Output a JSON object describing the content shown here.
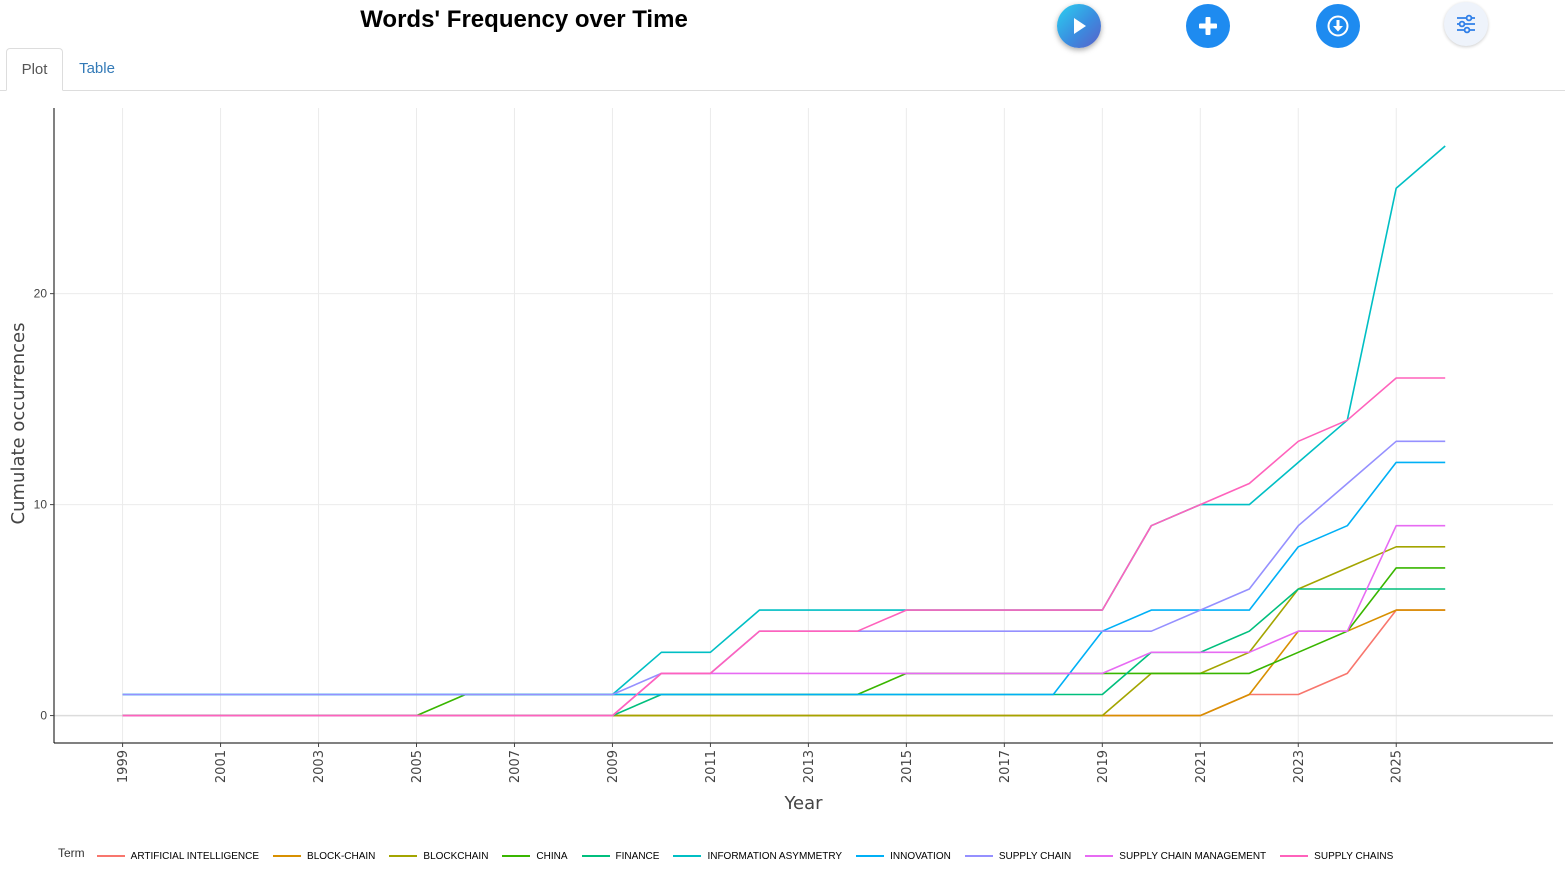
{
  "page": {
    "title": "Words' Frequency over Time",
    "tabs": [
      {
        "label": "Plot",
        "active": true
      },
      {
        "label": "Table",
        "active": false
      }
    ],
    "buttons": [
      {
        "name": "play-button",
        "icon": "play-icon"
      },
      {
        "name": "add-button",
        "icon": "plus-icon"
      },
      {
        "name": "download-button",
        "icon": "download-icon"
      },
      {
        "name": "settings-button",
        "icon": "sliders-icon"
      }
    ],
    "colors": {
      "accent": "#1e8bf0",
      "tab_link": "#337ab7"
    }
  },
  "chart_data": {
    "type": "line",
    "title": "Words' Frequency over Time",
    "xlabel": "Year",
    "ylabel": "Cumulate occurrences",
    "xlim": [
      1997.6,
      2028.2
    ],
    "ylim": [
      -1.3,
      28.8
    ],
    "x_ticks": [
      1999,
      2001,
      2003,
      2005,
      2007,
      2009,
      2011,
      2013,
      2015,
      2017,
      2019,
      2021,
      2023,
      2025
    ],
    "y_ticks": [
      0,
      10,
      20
    ],
    "grid": true,
    "legend_title": "Term",
    "legend_position": "bottom",
    "x": [
      1999,
      2000,
      2001,
      2002,
      2003,
      2004,
      2005,
      2006,
      2007,
      2008,
      2009,
      2010,
      2011,
      2012,
      2013,
      2014,
      2015,
      2016,
      2017,
      2018,
      2019,
      2020,
      2021,
      2022,
      2023,
      2024,
      2025,
      2026
    ],
    "series": [
      {
        "name": "ARTIFICIAL INTELLIGENCE",
        "color": "#F8766D",
        "values": [
          0,
          0,
          0,
          0,
          0,
          0,
          0,
          0,
          0,
          0,
          0,
          0,
          0,
          0,
          0,
          0,
          0,
          0,
          0,
          0,
          0,
          0,
          0,
          1,
          1,
          2,
          5,
          5
        ]
      },
      {
        "name": "BLOCK-CHAIN",
        "color": "#D89000",
        "values": [
          0,
          0,
          0,
          0,
          0,
          0,
          0,
          0,
          0,
          0,
          0,
          0,
          0,
          0,
          0,
          0,
          0,
          0,
          0,
          0,
          0,
          0,
          0,
          1,
          4,
          4,
          5,
          5
        ]
      },
      {
        "name": "BLOCKCHAIN",
        "color": "#A3A500",
        "values": [
          0,
          0,
          0,
          0,
          0,
          0,
          0,
          0,
          0,
          0,
          0,
          0,
          0,
          0,
          0,
          0,
          0,
          0,
          0,
          0,
          0,
          2,
          2,
          3,
          6,
          7,
          8,
          8
        ]
      },
      {
        "name": "CHINA",
        "color": "#39B600",
        "values": [
          0,
          0,
          0,
          0,
          0,
          0,
          0,
          1,
          1,
          1,
          1,
          1,
          1,
          1,
          1,
          1,
          2,
          2,
          2,
          2,
          2,
          2,
          2,
          2,
          3,
          4,
          7,
          7
        ]
      },
      {
        "name": "FINANCE",
        "color": "#00BF7D",
        "values": [
          0,
          0,
          0,
          0,
          0,
          0,
          0,
          0,
          0,
          0,
          0,
          1,
          1,
          1,
          1,
          1,
          1,
          1,
          1,
          1,
          1,
          3,
          3,
          4,
          6,
          6,
          6,
          6
        ]
      },
      {
        "name": "INFORMATION ASYMMETRY",
        "color": "#00BFC4",
        "values": [
          1,
          1,
          1,
          1,
          1,
          1,
          1,
          1,
          1,
          1,
          1,
          3,
          3,
          5,
          5,
          5,
          5,
          5,
          5,
          5,
          5,
          9,
          10,
          10,
          12,
          14,
          25,
          27
        ]
      },
      {
        "name": "INNOVATION",
        "color": "#00B0F6",
        "values": [
          1,
          1,
          1,
          1,
          1,
          1,
          1,
          1,
          1,
          1,
          1,
          1,
          1,
          1,
          1,
          1,
          1,
          1,
          1,
          1,
          4,
          5,
          5,
          5,
          8,
          9,
          12,
          12
        ]
      },
      {
        "name": "SUPPLY CHAIN",
        "color": "#9590FF",
        "values": [
          1,
          1,
          1,
          1,
          1,
          1,
          1,
          1,
          1,
          1,
          1,
          2,
          2,
          4,
          4,
          4,
          4,
          4,
          4,
          4,
          4,
          4,
          5,
          6,
          9,
          11,
          13,
          13
        ]
      },
      {
        "name": "SUPPLY CHAIN MANAGEMENT",
        "color": "#E76BF3",
        "values": [
          0,
          0,
          0,
          0,
          0,
          0,
          0,
          0,
          0,
          0,
          0,
          2,
          2,
          2,
          2,
          2,
          2,
          2,
          2,
          2,
          2,
          3,
          3,
          3,
          4,
          4,
          9,
          9
        ]
      },
      {
        "name": "SUPPLY CHAINS",
        "color": "#FF62BC",
        "values": [
          0,
          0,
          0,
          0,
          0,
          0,
          0,
          0,
          0,
          0,
          0,
          2,
          2,
          4,
          4,
          4,
          5,
          5,
          5,
          5,
          5,
          9,
          10,
          11,
          13,
          14,
          16,
          16
        ]
      }
    ]
  }
}
